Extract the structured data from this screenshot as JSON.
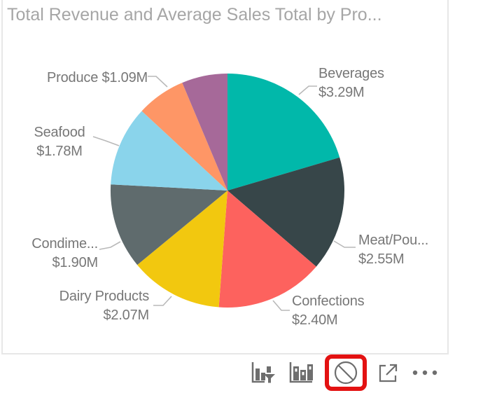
{
  "visual": {
    "title": "Total Revenue and Average Sales Total by Pro..."
  },
  "chart_data": {
    "type": "pie",
    "title": "Total Revenue and Average Sales Total by Pro...",
    "value_unit": "USD millions",
    "legend": "none",
    "label_style": "category and value callouts with leader lines",
    "slices": [
      {
        "label": "Beverages",
        "value_label": "$3.29M",
        "value": 3.29,
        "color": "#01B8AA"
      },
      {
        "label": "Meat/Pou...",
        "value_label": "$2.55M",
        "value": 2.55,
        "color": "#374649"
      },
      {
        "label": "Confections",
        "value_label": "$2.40M",
        "value": 2.4,
        "color": "#FD625E"
      },
      {
        "label": "Dairy Products",
        "value_label": "$2.07M",
        "value": 2.07,
        "color": "#F2C80F"
      },
      {
        "label": "Condime...",
        "value_label": "$1.90M",
        "value": 1.9,
        "color": "#5F6B6D"
      },
      {
        "label": "Seafood",
        "value_label": "$1.78M",
        "value": 1.78,
        "color": "#8AD4EB"
      },
      {
        "label": "Produce",
        "value_label": "$1.09M",
        "value": 1.09,
        "color": "#FE9666"
      },
      {
        "label": "",
        "value_label": "",
        "value": 1.02,
        "color": "#A66999",
        "note": "unlabeled slice, value estimated from arc angle"
      }
    ]
  },
  "toolbar": {
    "icons": [
      {
        "name": "drill-filter-icon",
        "glyph": "bar-chart-with-funnel"
      },
      {
        "name": "show-data-icon",
        "glyph": "outlined-bar-chart"
      },
      {
        "name": "prohibited-icon",
        "glyph": "no-entry-circle",
        "highlighted": true
      },
      {
        "name": "focus-mode-icon",
        "glyph": "expand-arrow"
      },
      {
        "name": "more-options-icon",
        "glyph": "ellipsis"
      }
    ]
  },
  "colors": {
    "card_border": "#E7E7E7",
    "title_text": "#A6A6A6",
    "label_text": "#777777",
    "leader_line": "#B9B9B9",
    "icon_gray": "#6E6E6E",
    "highlight_red": "#E31212"
  }
}
